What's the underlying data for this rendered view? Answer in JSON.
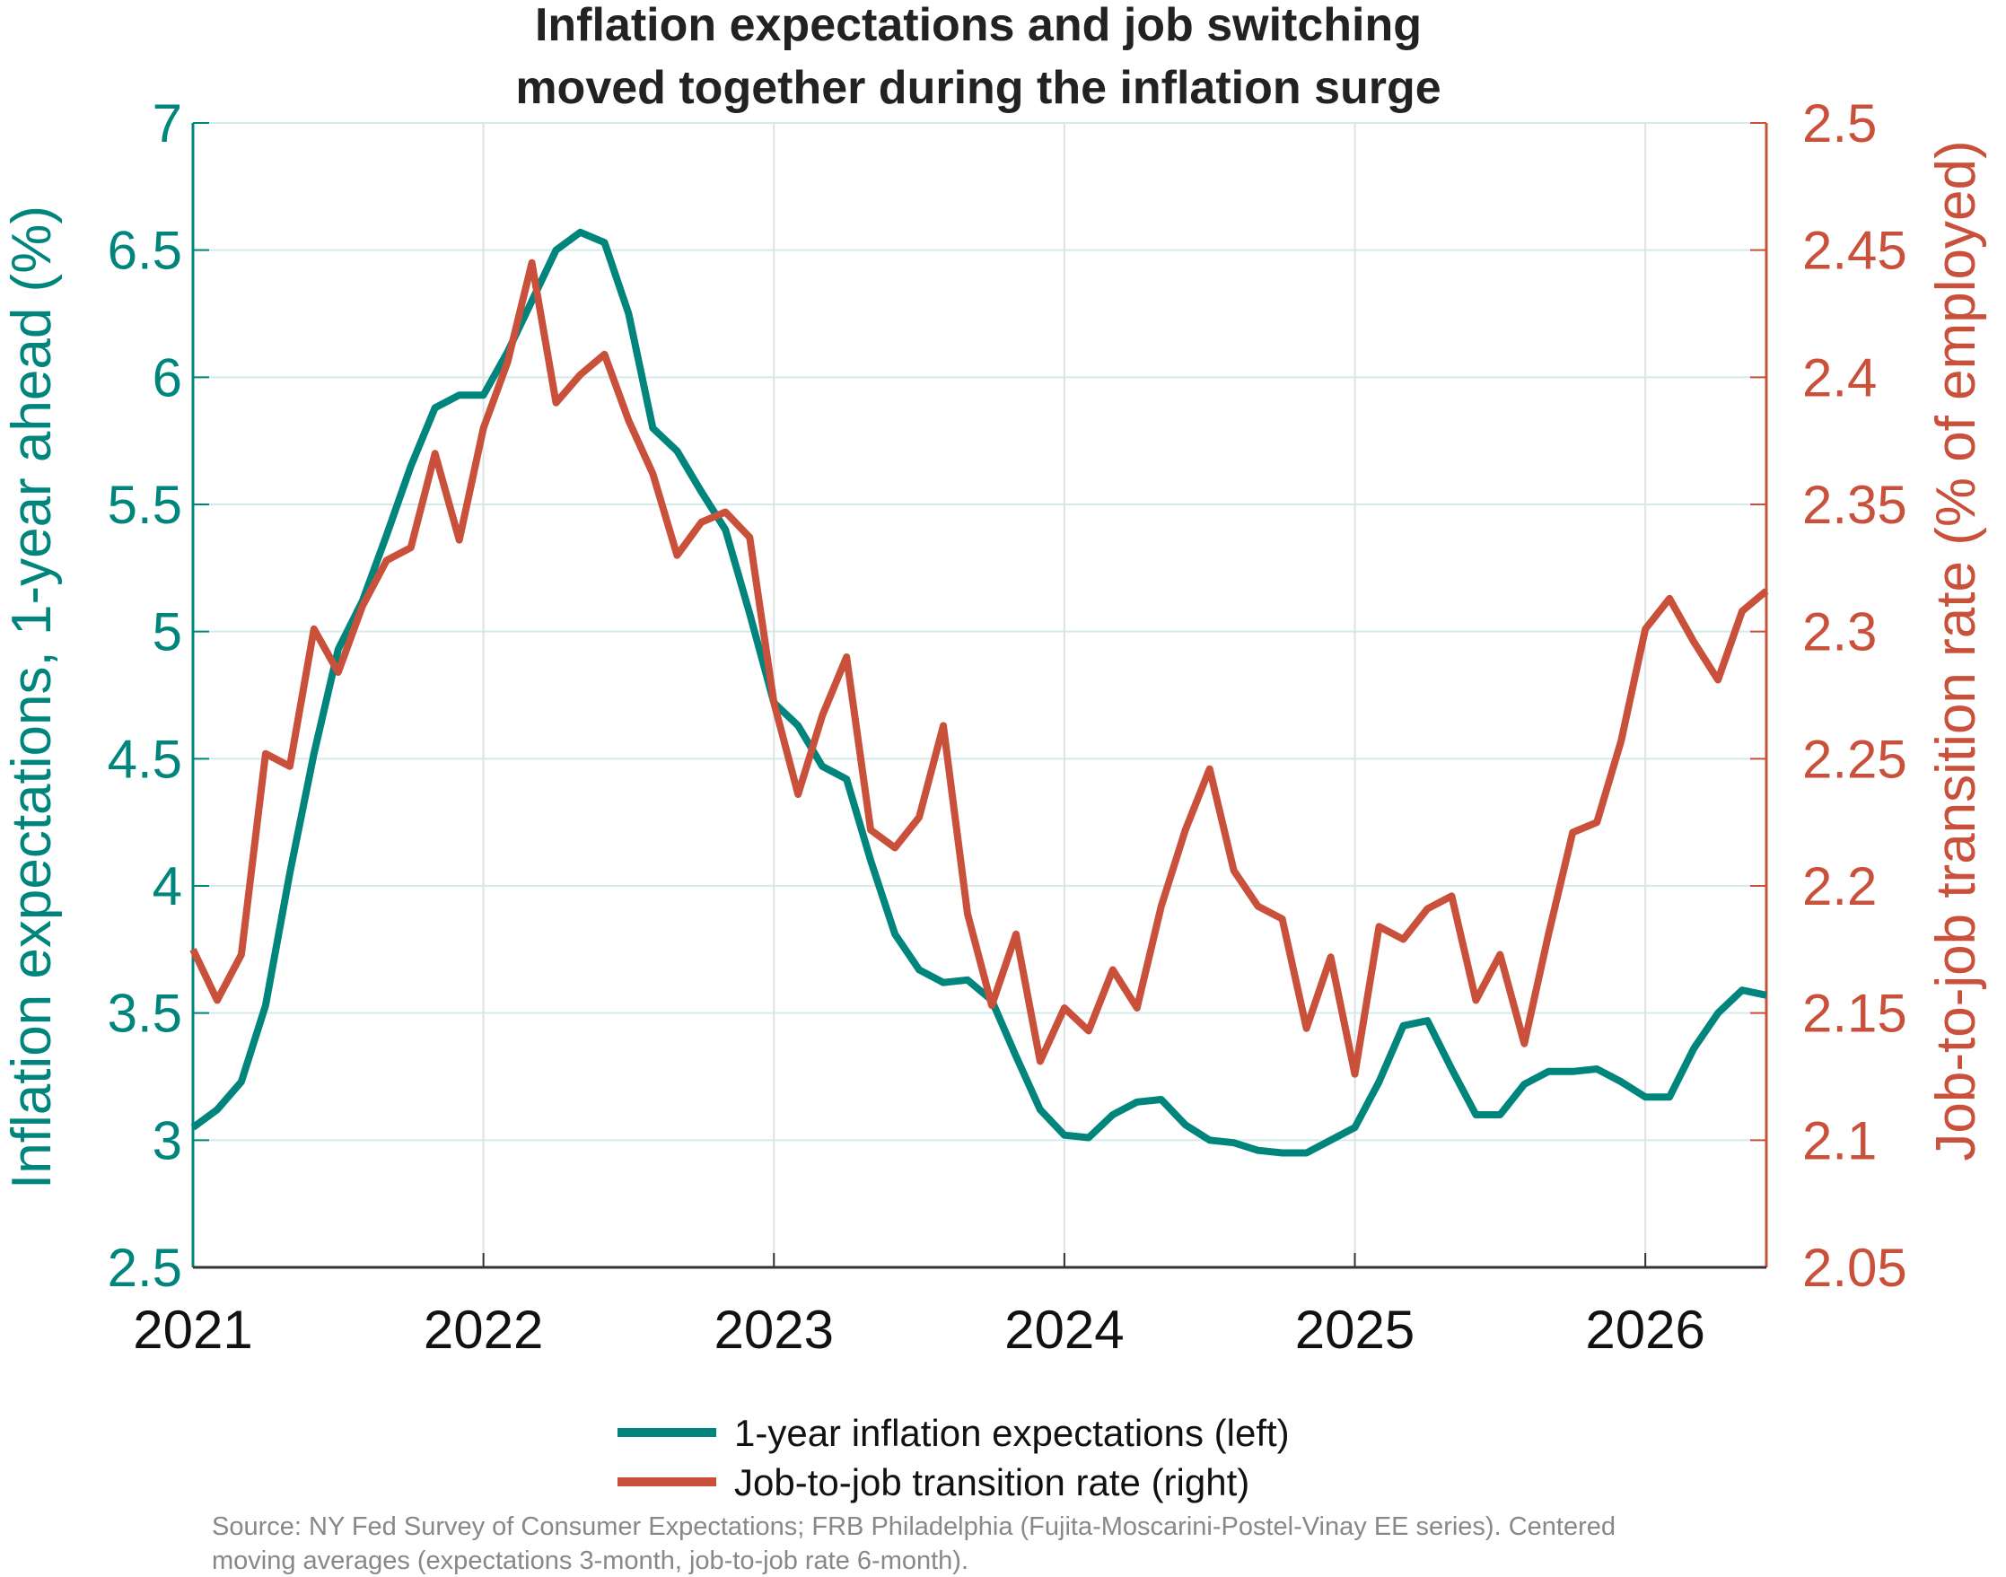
{
  "chart_data": {
    "type": "line",
    "title": [
      "Inflation expectations and job switching",
      "moved together during the inflation surge"
    ],
    "x_ticks": [
      "2021",
      "2022",
      "2023",
      "2024",
      "2025",
      "2026"
    ],
    "x_range": [
      "2021-01",
      "2026-06"
    ],
    "y_left": {
      "label": "Inflation expectations, 1-year ahead (%)",
      "range": [
        2.5,
        7
      ],
      "ticks": [
        "2.5",
        "3",
        "3.5",
        "4",
        "4.5",
        "5",
        "5.5",
        "6",
        "6.5",
        "7"
      ],
      "color": "#00857D"
    },
    "y_right": {
      "label": "Job-to-job transition rate (% of employed)",
      "range": [
        2.05,
        2.5
      ],
      "ticks": [
        "2.05",
        "2.1",
        "2.15",
        "2.2",
        "2.25",
        "2.3",
        "2.35",
        "2.4",
        "2.45",
        "2.5"
      ],
      "color": "#C9503A"
    },
    "grid": true,
    "legend_placement": "bottom",
    "series": [
      {
        "name": "1-year inflation expectations (left)",
        "axis": "left",
        "color": "#00857D",
        "x": [
          "2021-01",
          "2021-02",
          "2021-03",
          "2021-04",
          "2021-05",
          "2021-06",
          "2021-07",
          "2021-08",
          "2021-09",
          "2021-10",
          "2021-11",
          "2021-12",
          "2022-01",
          "2022-02",
          "2022-03",
          "2022-04",
          "2022-05",
          "2022-06",
          "2022-07",
          "2022-08",
          "2022-09",
          "2022-10",
          "2022-11",
          "2022-12",
          "2023-01",
          "2023-02",
          "2023-03",
          "2023-04",
          "2023-05",
          "2023-06",
          "2023-07",
          "2023-08",
          "2023-09",
          "2023-10",
          "2023-11",
          "2023-12",
          "2024-01",
          "2024-02",
          "2024-03",
          "2024-04",
          "2024-05",
          "2024-06",
          "2024-07",
          "2024-08",
          "2024-09",
          "2024-10",
          "2024-11",
          "2024-12",
          "2025-01",
          "2025-02",
          "2025-03",
          "2025-04",
          "2025-05",
          "2025-06",
          "2025-07",
          "2025-08",
          "2025-09",
          "2025-10",
          "2025-11",
          "2025-12",
          "2026-01",
          "2026-02",
          "2026-03",
          "2026-04",
          "2026-05",
          "2026-06"
        ],
        "values": [
          3.05,
          3.12,
          3.23,
          3.53,
          4.05,
          4.52,
          4.93,
          5.12,
          5.38,
          5.65,
          5.88,
          5.93,
          5.93,
          6.1,
          6.3,
          6.5,
          6.57,
          6.53,
          6.25,
          5.8,
          5.71,
          5.55,
          5.4,
          5.07,
          4.72,
          4.63,
          4.47,
          4.42,
          4.1,
          3.81,
          3.67,
          3.62,
          3.63,
          3.55,
          3.33,
          3.12,
          3.02,
          3.01,
          3.1,
          3.15,
          3.16,
          3.06,
          3.0,
          2.99,
          2.96,
          2.95,
          2.95,
          3.0,
          3.05,
          3.23,
          3.45,
          3.47,
          3.28,
          3.1,
          3.1,
          3.22,
          3.27,
          3.27,
          3.28,
          3.23,
          3.17,
          3.17,
          3.36,
          3.5,
          3.59,
          3.57
        ]
      },
      {
        "name": "Job-to-job transition rate (right)",
        "axis": "right",
        "color": "#C9503A",
        "x": [
          "2021-01",
          "2021-02",
          "2021-03",
          "2021-04",
          "2021-05",
          "2021-06",
          "2021-07",
          "2021-08",
          "2021-09",
          "2021-10",
          "2021-11",
          "2021-12",
          "2022-01",
          "2022-02",
          "2022-03",
          "2022-04",
          "2022-05",
          "2022-06",
          "2022-07",
          "2022-08",
          "2022-09",
          "2022-10",
          "2022-11",
          "2022-12",
          "2023-01",
          "2023-02",
          "2023-03",
          "2023-04",
          "2023-05",
          "2023-06",
          "2023-07",
          "2023-08",
          "2023-09",
          "2023-10",
          "2023-11",
          "2023-12",
          "2024-01",
          "2024-02",
          "2024-03",
          "2024-04",
          "2024-05",
          "2024-06",
          "2024-07",
          "2024-08",
          "2024-09",
          "2024-10",
          "2024-11",
          "2024-12",
          "2025-01",
          "2025-02",
          "2025-03",
          "2025-04",
          "2025-05",
          "2025-06",
          "2025-07",
          "2025-08",
          "2025-09",
          "2025-10",
          "2025-11",
          "2025-12",
          "2026-01",
          "2026-02",
          "2026-03",
          "2026-04",
          "2026-05",
          "2026-06"
        ],
        "values": [
          2.175,
          2.155,
          2.173,
          2.252,
          2.247,
          2.301,
          2.284,
          2.31,
          2.328,
          2.333,
          2.37,
          2.336,
          2.38,
          2.406,
          2.445,
          2.39,
          2.401,
          2.409,
          2.383,
          2.362,
          2.33,
          2.343,
          2.347,
          2.337,
          2.272,
          2.236,
          2.267,
          2.29,
          2.222,
          2.215,
          2.227,
          2.263,
          2.189,
          2.153,
          2.181,
          2.131,
          2.152,
          2.143,
          2.167,
          2.152,
          2.192,
          2.222,
          2.246,
          2.206,
          2.192,
          2.187,
          2.144,
          2.172,
          2.126,
          2.184,
          2.179,
          2.191,
          2.196,
          2.155,
          2.173,
          2.138,
          2.181,
          2.221,
          2.225,
          2.257,
          2.301,
          2.313,
          2.296,
          2.281,
          2.308,
          2.316
        ]
      }
    ],
    "source": [
      "Source: NY Fed Survey of Consumer Expectations; FRB Philadelphia (Fujita-Moscarini-Postel-Vinay EE series). Centered",
      "moving averages (expectations 3-month, job-to-job rate 6-month)."
    ]
  }
}
